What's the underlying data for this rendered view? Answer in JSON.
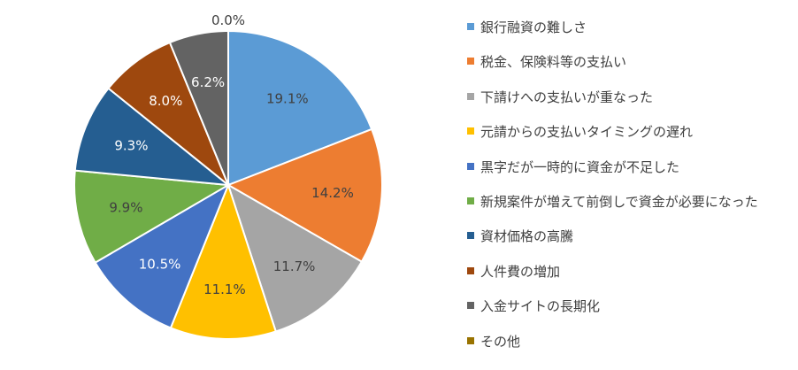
{
  "chart_data": {
    "type": "pie",
    "title": "",
    "legend_position": "right",
    "series": [
      {
        "label": "銀行融資の難しさ",
        "value": 19.1,
        "value_label": "19.1%",
        "color": "#5b9bd5"
      },
      {
        "label": "税金、保険料等の支払い",
        "value": 14.2,
        "value_label": "14.2%",
        "color": "#ed7d31"
      },
      {
        "label": "下請けへの支払いが重なった",
        "value": 11.7,
        "value_label": "11.7%",
        "color": "#a5a5a5"
      },
      {
        "label": "元請からの支払いタイミングの遅れ",
        "value": 11.1,
        "value_label": "11.1%",
        "color": "#ffc000"
      },
      {
        "label": "黒字だが一時的に資金が不足した",
        "value": 10.5,
        "value_label": "10.5%",
        "color": "#4472c4"
      },
      {
        "label": "新規案件が増えて前倒しで資金が必要になった",
        "value": 9.9,
        "value_label": "9.9%",
        "color": "#70ad47"
      },
      {
        "label": "資材価格の高騰",
        "value": 9.3,
        "value_label": "9.3%",
        "color": "#255e91"
      },
      {
        "label": "人件費の増加",
        "value": 8.0,
        "value_label": "8.0%",
        "color": "#9e480e"
      },
      {
        "label": "入金サイトの長期化",
        "value": 6.2,
        "value_label": "6.2%",
        "color": "#636363"
      },
      {
        "label": "その他",
        "value": 0.0,
        "value_label": "0.0%",
        "color": "#997300"
      }
    ]
  }
}
